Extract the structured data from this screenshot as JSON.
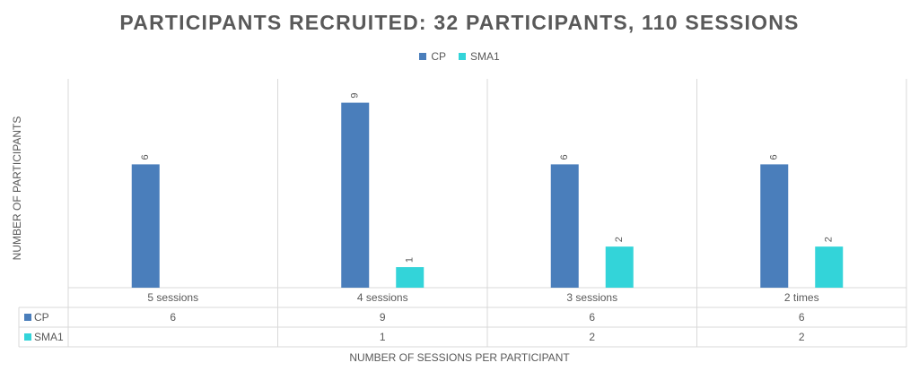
{
  "chart_data": {
    "type": "bar",
    "title": "PARTICIPANTS RECRUITED: 32 PARTICIPANTS, 110 SESSIONS",
    "xlabel": "NUMBER OF SESSIONS PER PARTICIPANT",
    "ylabel": "NUMBER OF PARTICIPANTS",
    "categories": [
      "5 sessions",
      "4 sessions",
      "3 sessions",
      "2 times"
    ],
    "series": [
      {
        "name": "CP",
        "color": "#4a7ebb",
        "values": [
          6,
          9,
          6,
          6
        ],
        "labels": [
          "6",
          "9",
          "6",
          "6"
        ]
      },
      {
        "name": "SMA1",
        "color": "#33d4d9",
        "values": [
          null,
          1,
          2,
          2
        ],
        "labels": [
          "",
          "1",
          "2",
          "2"
        ]
      }
    ],
    "ylim": [
      0,
      9.2
    ],
    "legend": "top-center",
    "data_table": true,
    "grid": false
  }
}
